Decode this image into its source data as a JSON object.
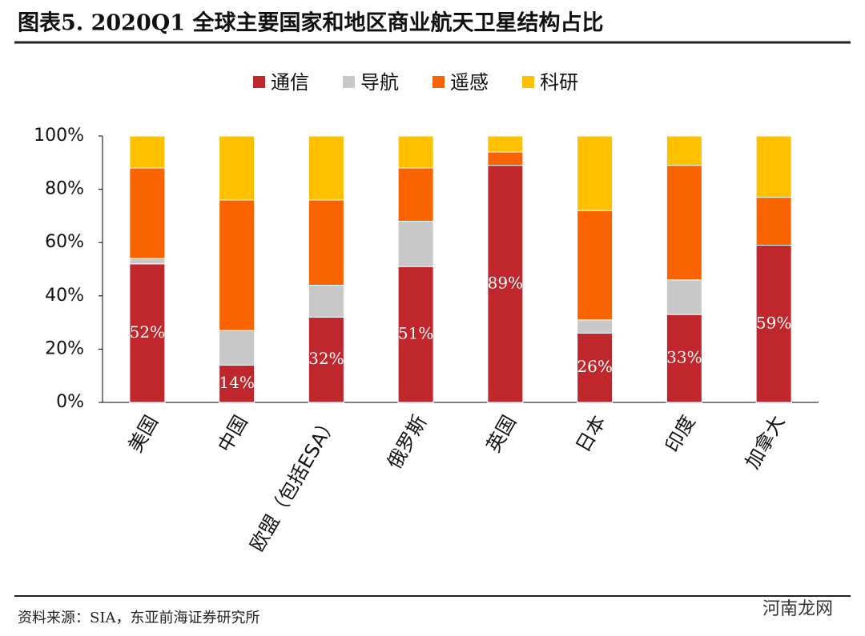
{
  "chart_data": {
    "type": "stacked_bar",
    "title": "图表5.   2020Q1 全球主要国家和地区商业航天卫星结构占比",
    "source": "资料来源：SIA，东亚前海证券研究所",
    "watermark": "河南龙网",
    "categories": [
      "美国",
      "中国",
      "欧盟（包括ESA）",
      "俄罗斯",
      "英国",
      "日本",
      "印度",
      "加拿大"
    ],
    "series": [
      {
        "name": "通信",
        "color": "#c0272d",
        "values": [
          52,
          14,
          32,
          51,
          89,
          26,
          33,
          59
        ],
        "value_labels": [
          "52%",
          "14%",
          "32%",
          "51%",
          "89%",
          "26%",
          "33%",
          "59%"
        ]
      },
      {
        "name": "导航",
        "color": "#c8c8c8",
        "values": [
          2,
          13,
          12,
          17,
          0,
          5,
          13,
          0
        ]
      },
      {
        "name": "遥感",
        "color": "#f96400",
        "values": [
          34,
          49,
          32,
          20,
          5,
          41,
          43,
          18
        ]
      },
      {
        "name": "科研",
        "color": "#ffc000",
        "values": [
          12,
          24,
          24,
          12,
          6,
          28,
          11,
          23
        ]
      }
    ],
    "ylim": [
      0,
      100
    ],
    "yticks": [
      {
        "value": 0,
        "label": "0%"
      },
      {
        "value": 20,
        "label": "20%"
      },
      {
        "value": 40,
        "label": "40%"
      },
      {
        "value": 60,
        "label": "60%"
      },
      {
        "value": 80,
        "label": "80%"
      },
      {
        "value": 100,
        "label": "100%"
      }
    ],
    "legend": "top"
  }
}
